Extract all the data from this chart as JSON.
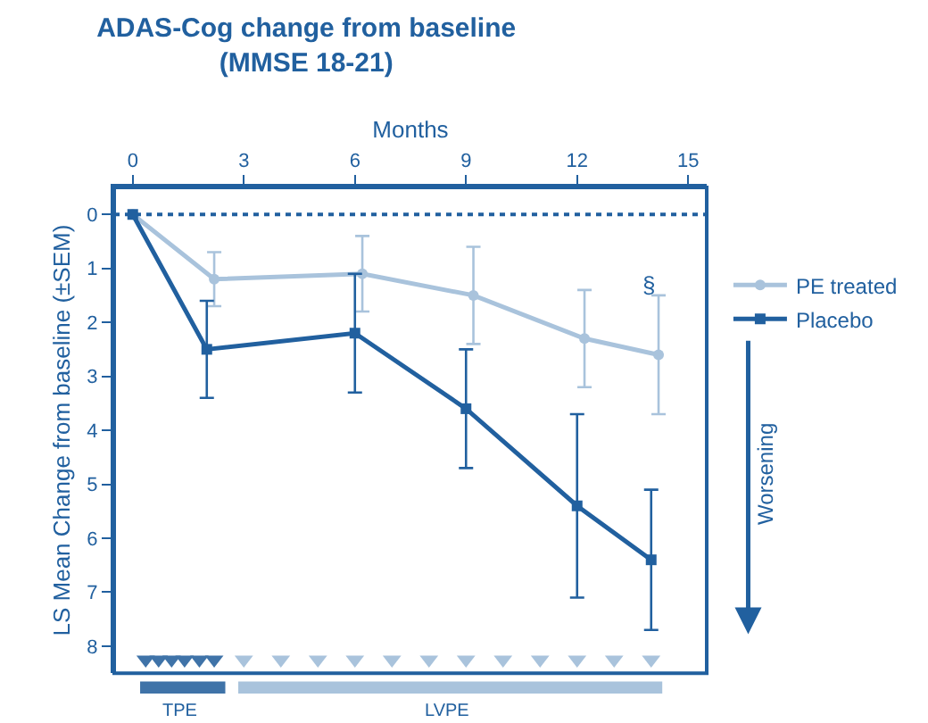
{
  "chart_data": {
    "type": "line",
    "title": "ADAS-Cog change from baseline\n(MMSE 18-21)",
    "xlabel": "Months",
    "ylabel": "LS Mean Change from baseline (±SEM)",
    "xlim": [
      -0.5,
      15.5
    ],
    "xticks": [
      0,
      3,
      6,
      9,
      12,
      15
    ],
    "ylim": [
      8.5,
      -0.5
    ],
    "yticks": [
      0,
      1,
      2,
      3,
      4,
      5,
      6,
      7,
      8
    ],
    "legend": "top right",
    "line_style": "solid",
    "series": [
      {
        "name": "PE treated",
        "color": "#a9c3dc",
        "marker": "circle",
        "x": [
          0,
          2.2,
          6.2,
          9.2,
          12.2,
          14.2
        ],
        "values": [
          0,
          1.2,
          1.1,
          1.5,
          2.3,
          2.6
        ],
        "errors": [
          null,
          [
            0.7,
            1.7
          ],
          [
            0.4,
            1.8
          ],
          [
            0.6,
            2.4
          ],
          [
            1.4,
            3.2
          ],
          [
            1.5,
            3.7
          ]
        ]
      },
      {
        "name": "Placebo",
        "color": "#21609f",
        "marker": "square",
        "x": [
          0,
          2,
          6,
          9,
          12,
          14
        ],
        "values": [
          0,
          2.5,
          2.2,
          3.6,
          5.4,
          6.4
        ],
        "errors": [
          null,
          [
            1.6,
            3.4
          ],
          [
            1.1,
            3.3
          ],
          [
            2.5,
            4.7
          ],
          [
            3.7,
            7.1
          ],
          [
            5.1,
            7.7
          ]
        ]
      },
      {
        "type": "scatter",
        "color": "#3f73a8",
        "marker": "triangle-down",
        "x": [
          0.35,
          0.7,
          1.05,
          1.4,
          1.8,
          2.2
        ],
        "values": [
          8.25,
          8.25,
          8.25,
          8.25,
          8.25,
          8.25
        ]
      },
      {
        "type": "scatter",
        "color": "#a9c3dc",
        "marker": "triangle-down",
        "x": [
          3,
          4,
          5,
          6,
          7,
          8,
          9,
          10,
          11,
          12,
          13,
          14
        ],
        "values": [
          8.25,
          8.25,
          8.25,
          8.25,
          8.25,
          8.25,
          8.25,
          8.25,
          8.25,
          8.25,
          8.25,
          8.25
        ]
      }
    ],
    "ref_lines": [
      {
        "axis": "y",
        "value": 0,
        "color": "#21609f",
        "line_style": "dotted"
      }
    ],
    "annotations": [
      "§",
      "Worsening",
      "TPE",
      "LVPE"
    ]
  }
}
